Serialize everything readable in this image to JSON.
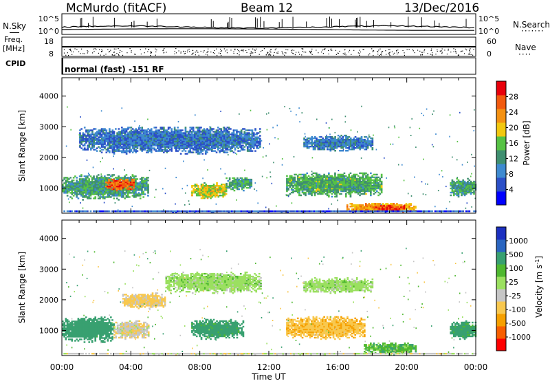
{
  "header": {
    "station": "McMurdo (fitACF)",
    "beam": "Beam 12",
    "date": "13/Dec/2016"
  },
  "top_panels": {
    "nsky_label": "N.Sky",
    "nsky_ticks": [
      "10^5",
      "10^0"
    ],
    "nsearch_label": "N.Search",
    "nsearch_ticks": [
      "10^5",
      "10^0"
    ],
    "freq_label": "Freq.",
    "freq_unit": "[MHz]",
    "freq_ticks": [
      "18",
      "8"
    ],
    "nave_label": "Nave",
    "nave_ticks": [
      "60",
      "0"
    ],
    "cpid_label": "CPID",
    "cpid_text": "normal (fast) -151 RF"
  },
  "colors": {
    "power": [
      "#0000ff",
      "#2b4fc7",
      "#3e8ad0",
      "#3f8f70",
      "#56c244",
      "#f2c80f",
      "#f49112",
      "#f25a0e",
      "#e8000b"
    ],
    "velocity": [
      "#ff0000",
      "#f85f00",
      "#f6a000",
      "#f8c84f",
      "#c6c6c6",
      "#9be060",
      "#4fb830",
      "#38a070",
      "#2a65c0",
      "#1c30c0"
    ]
  },
  "chart_data": [
    {
      "type": "heatmap",
      "title": "",
      "xlabel": "Time UT",
      "ylabel": "Slant Range [km]",
      "x_ticks": [
        "00:00",
        "04:00",
        "08:00",
        "12:00",
        "16:00",
        "20:00",
        "00:00"
      ],
      "y_ticks": [
        1000,
        2000,
        3000,
        4000
      ],
      "xlim": [
        0,
        24
      ],
      "ylim": [
        180,
        4600
      ],
      "colorbar": {
        "label": "Power [dB]",
        "ticks": [
          "4",
          "8",
          "12",
          "16",
          "20",
          "24",
          "28"
        ],
        "range": [
          0,
          32
        ]
      },
      "regions": [
        {
          "t0": 0.0,
          "t1": 5.0,
          "r0": 600,
          "r1": 1450,
          "value": 13
        },
        {
          "t0": 2.5,
          "t1": 4.2,
          "r0": 900,
          "r1": 1300,
          "value": 26
        },
        {
          "t0": 7.5,
          "t1": 9.5,
          "r0": 650,
          "r1": 1150,
          "value": 18
        },
        {
          "t0": 9.5,
          "t1": 11.0,
          "r0": 900,
          "r1": 1350,
          "value": 13
        },
        {
          "t0": 13.0,
          "t1": 18.5,
          "r0": 700,
          "r1": 1500,
          "value": 14
        },
        {
          "t0": 16.5,
          "t1": 20.5,
          "r0": 200,
          "r1": 500,
          "value": 22
        },
        {
          "t0": 18.0,
          "t1": 19.8,
          "r0": 220,
          "r1": 420,
          "value": 28
        },
        {
          "t0": 22.5,
          "t1": 24.0,
          "r0": 700,
          "r1": 1300,
          "value": 13
        },
        {
          "t0": 1.0,
          "t1": 11.5,
          "r0": 2100,
          "r1": 3000,
          "value": 8
        },
        {
          "t0": 14.0,
          "t1": 18.0,
          "r0": 2200,
          "r1": 2700,
          "value": 9
        },
        {
          "t0": 0.0,
          "t1": 24.0,
          "r0": 180,
          "r1": 260,
          "value": 6
        }
      ]
    },
    {
      "type": "heatmap",
      "title": "",
      "xlabel": "Time UT",
      "ylabel": "Slant Range [km]",
      "x_ticks": [
        "00:00",
        "04:00",
        "08:00",
        "12:00",
        "16:00",
        "20:00",
        "00:00"
      ],
      "y_ticks": [
        1000,
        2000,
        3000,
        4000
      ],
      "xlim": [
        0,
        24
      ],
      "ylim": [
        180,
        4600
      ],
      "colorbar": {
        "label": "Velocity [m s^-1]",
        "unit_base": "m s",
        "unit_exp": "-1",
        "ticks": [
          "-1000",
          "-500",
          "-100",
          "-25",
          "25",
          "100",
          "500",
          "1000"
        ]
      },
      "regions": [
        {
          "t0": 0.0,
          "t1": 3.0,
          "r0": 600,
          "r1": 1450,
          "value": 250
        },
        {
          "t0": 3.0,
          "t1": 5.0,
          "r0": 700,
          "r1": 1300,
          "value": -80
        },
        {
          "t0": 7.5,
          "t1": 10.5,
          "r0": 700,
          "r1": 1350,
          "value": 200
        },
        {
          "t0": 13.0,
          "t1": 17.5,
          "r0": 700,
          "r1": 1450,
          "value": -400
        },
        {
          "t0": 17.5,
          "t1": 20.5,
          "r0": 200,
          "r1": 600,
          "value": 60
        },
        {
          "t0": 22.5,
          "t1": 24.0,
          "r0": 700,
          "r1": 1300,
          "value": 200
        },
        {
          "t0": 3.5,
          "t1": 6.0,
          "r0": 1700,
          "r1": 2200,
          "value": -150
        },
        {
          "t0": 6.0,
          "t1": 11.5,
          "r0": 2200,
          "r1": 2900,
          "value": 0
        },
        {
          "t0": 14.0,
          "t1": 18.0,
          "r0": 2200,
          "r1": 2700,
          "value": 0
        },
        {
          "t0": 0.0,
          "t1": 24.0,
          "r0": 180,
          "r1": 260,
          "value": -60
        }
      ]
    }
  ]
}
